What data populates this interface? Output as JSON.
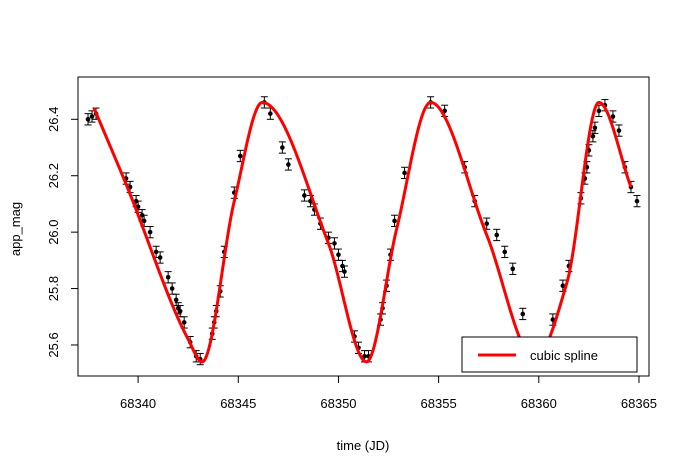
{
  "chart_data": {
    "type": "scatter",
    "xlabel": "time (JD)",
    "ylabel": "app_mag",
    "xlim": [
      68337,
      68365.5
    ],
    "ylim": [
      26.55,
      25.49
    ],
    "y_reversed": true,
    "x_ticks": [
      68340,
      68345,
      68350,
      68355,
      68360,
      68365
    ],
    "x_tick_labels": [
      "68340",
      "68345",
      "68350",
      "68355",
      "68360",
      "68365"
    ],
    "y_ticks": [
      25.6,
      25.8,
      26.0,
      26.2,
      26.4
    ],
    "y_tick_labels": [
      "25.6",
      "25.8",
      "26.0",
      "26.2",
      "26.4"
    ],
    "legend": {
      "position": "bottom-right",
      "entries": [
        "cubic spline"
      ]
    },
    "colors": {
      "spline": "#ff0000",
      "points": "#000000"
    },
    "series": [
      {
        "type": "scatter-errorbar",
        "error": 0.02,
        "points": [
          [
            68337.5,
            26.4
          ],
          [
            68337.7,
            26.41
          ],
          [
            68337.9,
            26.42
          ],
          [
            68339.4,
            26.19
          ],
          [
            68339.6,
            26.16
          ],
          [
            68339.9,
            26.11
          ],
          [
            68340.0,
            26.09
          ],
          [
            68340.2,
            26.06
          ],
          [
            68340.3,
            26.04
          ],
          [
            68340.6,
            26.0
          ],
          [
            68340.9,
            25.93
          ],
          [
            68341.1,
            25.91
          ],
          [
            68341.5,
            25.84
          ],
          [
            68341.7,
            25.8
          ],
          [
            68341.9,
            25.76
          ],
          [
            68342.0,
            25.73
          ],
          [
            68342.1,
            25.72
          ],
          [
            68342.3,
            25.68
          ],
          [
            68342.6,
            25.61
          ],
          [
            68342.9,
            25.56
          ],
          [
            68343.1,
            25.55
          ],
          [
            68343.7,
            25.64
          ],
          [
            68343.8,
            25.68
          ],
          [
            68343.9,
            25.72
          ],
          [
            68344.1,
            25.79
          ],
          [
            68344.3,
            25.93
          ],
          [
            68344.8,
            26.14
          ],
          [
            68345.1,
            26.27
          ],
          [
            68346.3,
            26.46
          ],
          [
            68346.6,
            26.42
          ],
          [
            68347.2,
            26.3
          ],
          [
            68347.5,
            26.24
          ],
          [
            68348.3,
            26.13
          ],
          [
            68348.6,
            26.11
          ],
          [
            68348.8,
            26.08
          ],
          [
            68349.1,
            26.03
          ],
          [
            68349.5,
            25.98
          ],
          [
            68349.8,
            25.96
          ],
          [
            68350.0,
            25.92
          ],
          [
            68350.2,
            25.88
          ],
          [
            68350.3,
            25.86
          ],
          [
            68350.8,
            25.63
          ],
          [
            68351.0,
            25.59
          ],
          [
            68351.3,
            25.56
          ],
          [
            68351.5,
            25.56
          ],
          [
            68352.1,
            25.69
          ],
          [
            68352.2,
            25.73
          ],
          [
            68352.4,
            25.81
          ],
          [
            68352.6,
            25.92
          ],
          [
            68352.8,
            26.04
          ],
          [
            68353.3,
            26.21
          ],
          [
            68354.6,
            26.46
          ],
          [
            68355.3,
            26.43
          ],
          [
            68356.3,
            26.23
          ],
          [
            68356.8,
            26.11
          ],
          [
            68357.4,
            26.03
          ],
          [
            68357.9,
            25.99
          ],
          [
            68358.3,
            25.93
          ],
          [
            68358.7,
            25.87
          ],
          [
            68359.2,
            25.71
          ],
          [
            68360.7,
            25.69
          ],
          [
            68361.2,
            25.81
          ],
          [
            68361.5,
            25.88
          ],
          [
            68362.1,
            26.12
          ],
          [
            68362.3,
            26.19
          ],
          [
            68362.4,
            26.23
          ],
          [
            68362.5,
            26.29
          ],
          [
            68362.7,
            26.34
          ],
          [
            68362.8,
            26.37
          ],
          [
            68363.0,
            26.43
          ],
          [
            68363.3,
            26.45
          ],
          [
            68363.7,
            26.41
          ],
          [
            68364.0,
            26.36
          ],
          [
            68364.3,
            26.23
          ],
          [
            68364.6,
            26.16
          ],
          [
            68364.9,
            26.11
          ]
        ]
      },
      {
        "name": "cubic spline",
        "type": "line",
        "knots": [
          [
            68337.8,
            26.44
          ],
          [
            68339.4,
            26.17
          ],
          [
            68342.5,
            25.62
          ],
          [
            68343.2,
            25.54
          ],
          [
            68344.8,
            26.11
          ],
          [
            68346.2,
            26.46
          ],
          [
            68349.5,
            25.96
          ],
          [
            68351.4,
            25.54
          ],
          [
            68352.9,
            26.01
          ],
          [
            68354.6,
            26.46
          ],
          [
            68357.4,
            25.99
          ],
          [
            68359.8,
            25.55
          ],
          [
            68361.4,
            25.82
          ],
          [
            68363.0,
            26.46
          ],
          [
            68364.6,
            26.16
          ]
        ]
      }
    ]
  }
}
